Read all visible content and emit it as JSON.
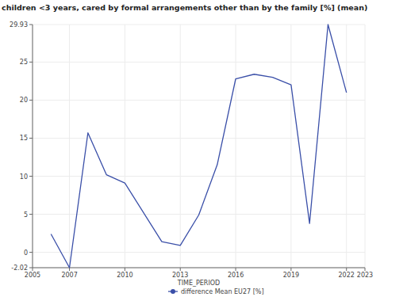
{
  "chart_data": {
    "type": "line",
    "title": "children <3 years, cared by formal arrangements other than by the family [%] (mean)",
    "x_label": "TIME_PERIOD",
    "x": [
      2006,
      2007,
      2008,
      2009,
      2010,
      2012,
      2013,
      2014,
      2015,
      2016,
      2017,
      2018,
      2019,
      2020,
      2021,
      2022
    ],
    "series": [
      {
        "name": "difference Mean EU27 [%]",
        "color": "#3a4fa8",
        "values": [
          2.4,
          -2.02,
          15.7,
          10.2,
          9.1,
          1.4,
          0.9,
          4.9,
          11.5,
          22.8,
          23.4,
          23.0,
          22.0,
          3.8,
          29.93,
          21.0
        ]
      }
    ],
    "xlim": [
      2005,
      2023
    ],
    "xticks": [
      2005,
      2007,
      2010,
      2013,
      2016,
      2019,
      2022,
      2023
    ],
    "ylim": [
      -2.02,
      29.93
    ],
    "yticks": [
      -2.02,
      0,
      5,
      10,
      15,
      20,
      25,
      29.93
    ],
    "grid": true,
    "legend": "bottom"
  }
}
